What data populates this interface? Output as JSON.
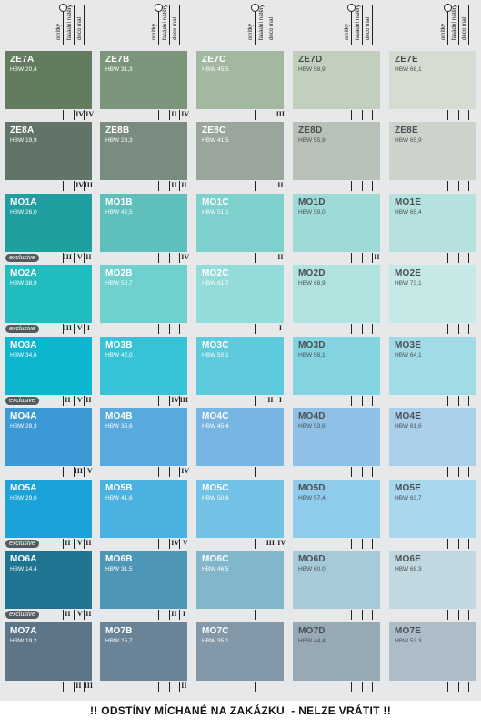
{
  "header_labels": [
    "omítky",
    "fasádní nátěry",
    "deco mal"
  ],
  "footer": "!! ODSTÍNY MÍCHANÉ NA ZAKÁZKU  - NELZE VRÁTIT !!",
  "exclusive_label": "exclusive",
  "rows": [
    {
      "cells": [
        {
          "code": "ZE7A",
          "hbw": "HBW 20,4",
          "color": "#637b5f",
          "marks": [
            "IV",
            "IV"
          ]
        },
        {
          "code": "ZE7B",
          "hbw": "HBW 31,3",
          "color": "#7b957a",
          "marks": [
            "II",
            "IV"
          ]
        },
        {
          "code": "ZE7C",
          "hbw": "HBW 45,5",
          "color": "#a3b8a1",
          "marks": [
            "III"
          ]
        },
        {
          "code": "ZE7D",
          "hbw": "HBW 58,9",
          "color": "#c2cfbd",
          "marks": []
        },
        {
          "code": "ZE7E",
          "hbw": "HBW 68,1",
          "color": "#d5ddd2",
          "marks": []
        }
      ]
    },
    {
      "cells": [
        {
          "code": "ZE8A",
          "hbw": "HBW 19,9",
          "color": "#627468",
          "marks": [
            "IV",
            "III"
          ]
        },
        {
          "code": "ZE8B",
          "hbw": "HBW 28,3",
          "color": "#7a8b7f",
          "marks": [
            "II",
            "II"
          ]
        },
        {
          "code": "ZE8C",
          "hbw": "HBW 41,5",
          "color": "#9aa69c",
          "marks": [
            "II"
          ]
        },
        {
          "code": "ZE8D",
          "hbw": "HBW 55,9",
          "color": "#b8c1b8",
          "marks": []
        },
        {
          "code": "ZE8E",
          "hbw": "HBW 65,9",
          "color": "#cdd3cb",
          "marks": []
        }
      ]
    },
    {
      "exclusive": true,
      "cells": [
        {
          "code": "MO1A",
          "hbw": "HBW 26,0",
          "color": "#1f9fa0",
          "marks": [
            "III",
            "V",
            "II"
          ]
        },
        {
          "code": "MO1B",
          "hbw": "HBW 42,5",
          "color": "#5fbfbb",
          "marks": [
            "IV"
          ]
        },
        {
          "code": "MO1C",
          "hbw": "HBW 51,1",
          "color": "#7ed0cc",
          "marks": [
            "II"
          ]
        },
        {
          "code": "MO1D",
          "hbw": "HBW 59,0",
          "color": "#9edbd7",
          "marks": [
            "II"
          ]
        },
        {
          "code": "MO1E",
          "hbw": "HBW 65,4",
          "color": "#b5e2de",
          "marks": []
        }
      ]
    },
    {
      "exclusive": true,
      "cells": [
        {
          "code": "MO2A",
          "hbw": "HBW 38,9",
          "color": "#20bcbe",
          "marks": [
            "III",
            "V",
            "I"
          ]
        },
        {
          "code": "MO2B",
          "hbw": "HBW 50,7",
          "color": "#6fd0ce",
          "marks": []
        },
        {
          "code": "MO2C",
          "hbw": "HBW 61,7",
          "color": "#94dcd9",
          "marks": [
            "I"
          ]
        },
        {
          "code": "MO2D",
          "hbw": "HBW 68,9",
          "color": "#b0e3e0",
          "marks": []
        },
        {
          "code": "MO2E",
          "hbw": "HBW 73,1",
          "color": "#c4e9e6",
          "marks": []
        }
      ]
    },
    {
      "exclusive": true,
      "cells": [
        {
          "code": "MO3A",
          "hbw": "HBW 34,6",
          "color": "#0db6cf",
          "marks": [
            "II",
            "V",
            "II"
          ]
        },
        {
          "code": "MO3B",
          "hbw": "HBW 42,0",
          "color": "#36c3d6",
          "marks": [
            "IV",
            "III"
          ]
        },
        {
          "code": "MO3C",
          "hbw": "HBW 50,1",
          "color": "#5dcbdb",
          "marks": [
            "II",
            "I"
          ]
        },
        {
          "code": "MO3D",
          "hbw": "HBW 58,1",
          "color": "#83d4e0",
          "marks": []
        },
        {
          "code": "MO3E",
          "hbw": "HBW 64,1",
          "color": "#a1dce6",
          "marks": []
        }
      ]
    },
    {
      "cells": [
        {
          "code": "MO4A",
          "hbw": "HBW 28,3",
          "color": "#3b9ad6",
          "marks": [
            "III",
            "V"
          ]
        },
        {
          "code": "MO4B",
          "hbw": "HBW 35,6",
          "color": "#57a9de",
          "marks": [
            "IV"
          ]
        },
        {
          "code": "MO4C",
          "hbw": "HBW 45,4",
          "color": "#77b5e2",
          "marks": []
        },
        {
          "code": "MO4D",
          "hbw": "HBW 53,6",
          "color": "#8fc1e6",
          "marks": []
        },
        {
          "code": "MO4E",
          "hbw": "HBW 61,6",
          "color": "#aacfea",
          "marks": []
        }
      ]
    },
    {
      "exclusive": true,
      "cells": [
        {
          "code": "MO5A",
          "hbw": "HBW 29,0",
          "color": "#1aa2d9",
          "marks": [
            "II",
            "V",
            "II"
          ]
        },
        {
          "code": "MO5B",
          "hbw": "HBW 41,6",
          "color": "#4ab2e1",
          "marks": [
            "IV",
            "V"
          ]
        },
        {
          "code": "MO5C",
          "hbw": "HBW 50,6",
          "color": "#72c2e7",
          "marks": [
            "III",
            "IV"
          ]
        },
        {
          "code": "MO5D",
          "hbw": "HBW 57,4",
          "color": "#8fcbea",
          "marks": []
        },
        {
          "code": "MO5E",
          "hbw": "HBW 63,7",
          "color": "#a8d7ee",
          "marks": []
        }
      ]
    },
    {
      "exclusive": true,
      "cells": [
        {
          "code": "MO6A",
          "hbw": "HBW 14,4",
          "color": "#1e7491",
          "marks": [
            "II",
            "V",
            "II"
          ]
        },
        {
          "code": "MO6B",
          "hbw": "HBW 31,5",
          "color": "#4e96b6",
          "marks": [
            "II",
            "I"
          ]
        },
        {
          "code": "MO6C",
          "hbw": "HBW 46,5",
          "color": "#82b7cb",
          "marks": []
        },
        {
          "code": "MO6D",
          "hbw": "HBW 60,0",
          "color": "#a7cad8",
          "marks": []
        },
        {
          "code": "MO6E",
          "hbw": "HBW 68,3",
          "color": "#c2d8e0",
          "marks": []
        }
      ]
    },
    {
      "cells": [
        {
          "code": "MO7A",
          "hbw": "HBW 19,2",
          "color": "#5e7588",
          "marks": [
            "II",
            "III"
          ]
        },
        {
          "code": "MO7B",
          "hbw": "HBW 25,7",
          "color": "#6a8396",
          "marks": [
            "II"
          ]
        },
        {
          "code": "MO7C",
          "hbw": "HBW 35,1",
          "color": "#8398a8",
          "marks": []
        },
        {
          "code": "MO7D",
          "hbw": "HBW 44,4",
          "color": "#98a9b6",
          "marks": []
        },
        {
          "code": "MO7E",
          "hbw": "HBW 53,3",
          "color": "#adbcc6",
          "marks": []
        }
      ]
    }
  ]
}
